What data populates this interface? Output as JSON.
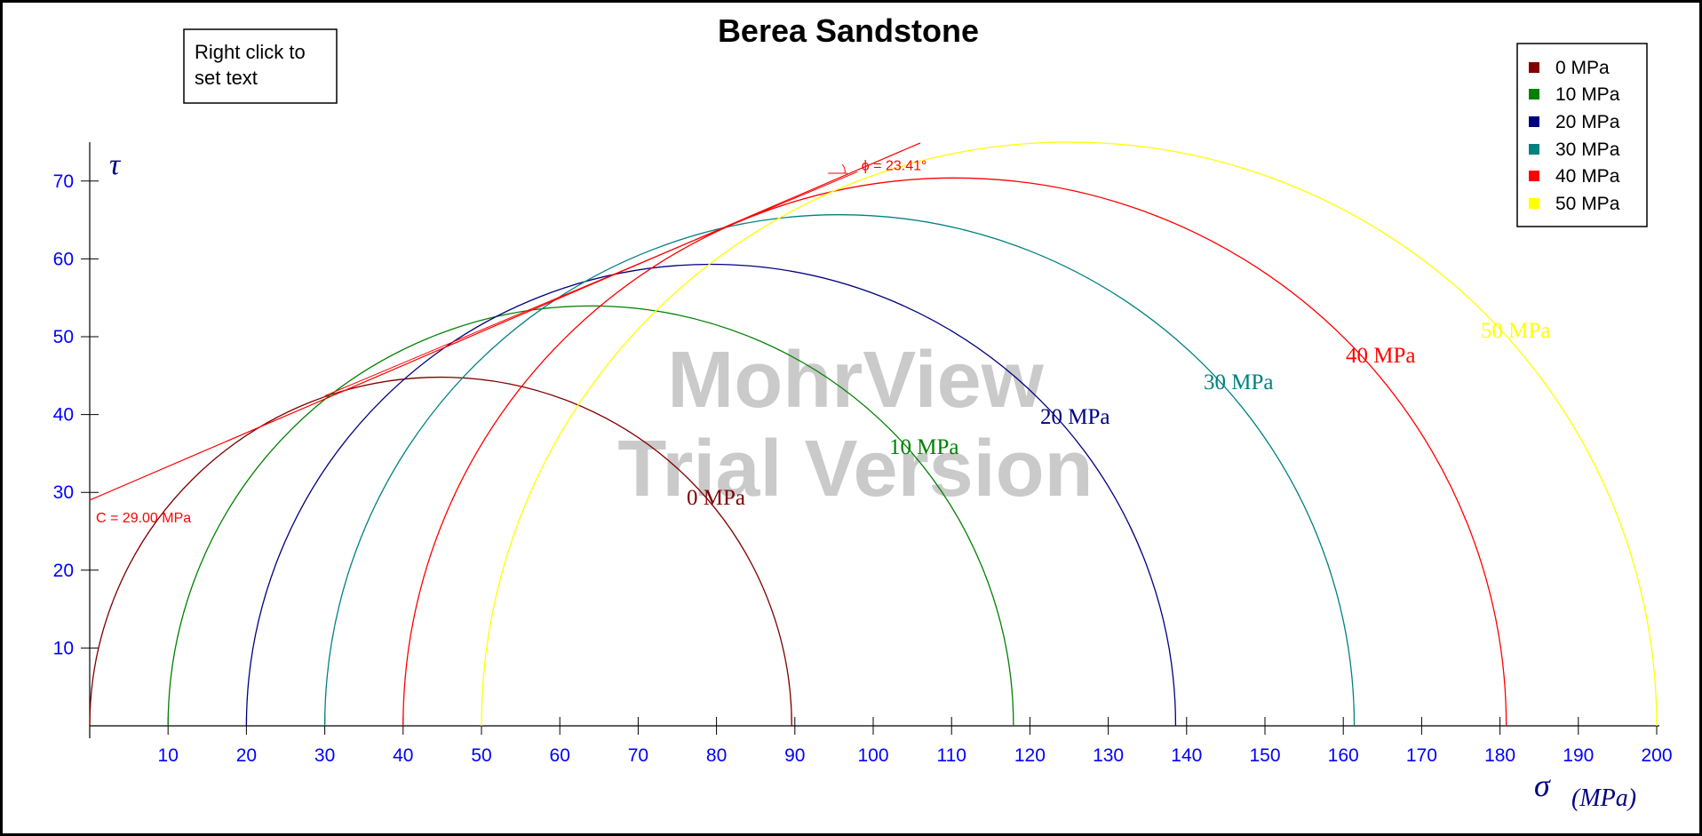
{
  "chart_data": {
    "type": "mohr-circle",
    "title": "Berea Sandstone",
    "xlabel_symbol": "σ",
    "xlabel_unit": "(MPa)",
    "ylabel_symbol": "τ",
    "xlim": [
      0,
      200
    ],
    "ylim": [
      0,
      75
    ],
    "xticks": [
      10,
      20,
      30,
      40,
      50,
      60,
      70,
      80,
      90,
      100,
      110,
      120,
      130,
      140,
      150,
      160,
      170,
      180,
      190,
      200
    ],
    "yticks": [
      10,
      20,
      30,
      40,
      50,
      60,
      70
    ],
    "circles": [
      {
        "name": "0 MPa",
        "sigma3": 0,
        "sigma1": 89.6,
        "color": "#800000"
      },
      {
        "name": "10 MPa",
        "sigma3": 10,
        "sigma1": 117.9,
        "color": "#008000"
      },
      {
        "name": "20 MPa",
        "sigma3": 20,
        "sigma1": 138.6,
        "color": "#000080"
      },
      {
        "name": "30 MPa",
        "sigma3": 30,
        "sigma1": 161.4,
        "color": "#008080"
      },
      {
        "name": "40 MPa",
        "sigma3": 40,
        "sigma1": 180.8,
        "color": "#ff0000"
      },
      {
        "name": "50 MPa",
        "sigma3": 50,
        "sigma1": 200.0,
        "color": "#ffff00"
      }
    ],
    "envelope": {
      "cohesion": 29.0,
      "friction_angle_deg": 23.41,
      "x_end": 106,
      "color": "#ff0000",
      "cohesion_label": "C = 29.00 MPa",
      "angle_label": "ϕ = 23.41°"
    },
    "legend": {
      "position": "top-right"
    }
  },
  "note_box": {
    "line1": "Right click to",
    "line2": "set text"
  },
  "watermark": {
    "line1": "MohrView",
    "line2": "Trial Version"
  }
}
